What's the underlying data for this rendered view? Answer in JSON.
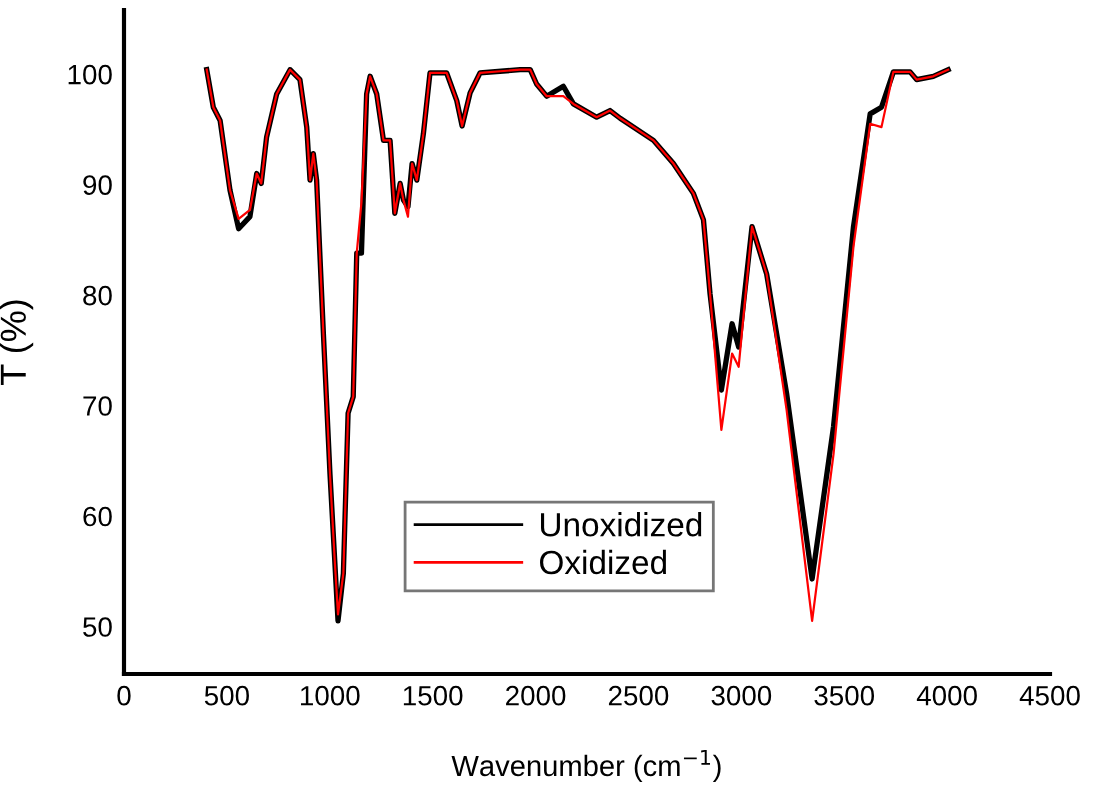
{
  "chart_data": {
    "type": "line",
    "xlabel": "Wavenumber (cm$^{−1}$)",
    "ylabel": "T (%)",
    "x": [
      402,
      434,
      467,
      515,
      557,
      612,
      645,
      667,
      693,
      742,
      807,
      855,
      888,
      904,
      920,
      936,
      969,
      1001,
      1024,
      1040,
      1066,
      1089,
      1114,
      1131,
      1154,
      1179,
      1196,
      1228,
      1261,
      1293,
      1316,
      1342,
      1358,
      1380,
      1400,
      1423,
      1455,
      1487,
      1568,
      1617,
      1643,
      1682,
      1730,
      1925,
      1974,
      2005,
      2054,
      2135,
      2184,
      2297,
      2362,
      2411,
      2573,
      2670,
      2767,
      2816,
      2848,
      2903,
      2955,
      2987,
      3052,
      3123,
      3220,
      3344,
      3448,
      3545,
      3626,
      3681,
      3739,
      3820,
      3852,
      3933,
      4005
    ],
    "series": [
      {
        "name": "Unoxidized",
        "color": "#000000",
        "values": [
          100.4,
          97.0,
          95.8,
          89.5,
          86.0,
          87.1,
          91.0,
          90.1,
          94.3,
          98.2,
          100.4,
          99.5,
          95.2,
          90.4,
          92.8,
          90.4,
          76.5,
          63.8,
          56.0,
          50.5,
          54.8,
          69.3,
          70.8,
          83.8,
          83.8,
          98.2,
          99.8,
          98.2,
          94.0,
          94.0,
          87.4,
          90.1,
          88.6,
          88.0,
          91.9,
          90.4,
          94.6,
          100.1,
          100.1,
          97.6,
          95.3,
          98.3,
          100.1,
          100.4,
          100.4,
          99.1,
          98.0,
          98.9,
          97.3,
          96.1,
          96.7,
          96.0,
          94.0,
          91.9,
          89.2,
          86.8,
          80.1,
          71.4,
          77.4,
          75.3,
          86.2,
          81.9,
          71.1,
          54.3,
          68.1,
          86.2,
          96.4,
          97.0,
          100.2,
          100.2,
          99.5,
          99.8,
          100.4
        ]
      },
      {
        "name": "Oxidized",
        "color": "#ff0000",
        "values": [
          100.4,
          97.0,
          95.8,
          89.5,
          86.9,
          87.7,
          91.0,
          90.1,
          94.3,
          98.2,
          100.4,
          99.5,
          95.2,
          90.4,
          92.8,
          90.4,
          76.5,
          63.8,
          56.0,
          51.1,
          54.8,
          69.3,
          70.8,
          83.8,
          88.4,
          98.2,
          99.8,
          98.2,
          94.0,
          94.0,
          87.4,
          90.1,
          88.6,
          87.1,
          91.9,
          90.4,
          94.6,
          100.1,
          100.1,
          97.6,
          95.3,
          98.3,
          100.1,
          100.4,
          100.4,
          99.1,
          98.0,
          98.0,
          97.3,
          96.1,
          96.7,
          96.0,
          94.0,
          91.9,
          89.2,
          86.8,
          80.1,
          67.8,
          74.7,
          73.5,
          86.2,
          81.9,
          69.6,
          50.5,
          65.6,
          84.4,
          95.5,
          95.2,
          100.2,
          100.2,
          99.5,
          99.8,
          100.4
        ]
      }
    ],
    "xlim": [
      0,
      4500
    ],
    "xticks": [
      0,
      500,
      1000,
      1500,
      2000,
      2500,
      3000,
      3500,
      4000,
      4500
    ],
    "ylim": [
      45.7,
      105.8
    ],
    "yticks": [
      50,
      60,
      70,
      80,
      90,
      100
    ],
    "grid": false,
    "legend": "bottom",
    "marker": "none",
    "line_style": "solid"
  }
}
